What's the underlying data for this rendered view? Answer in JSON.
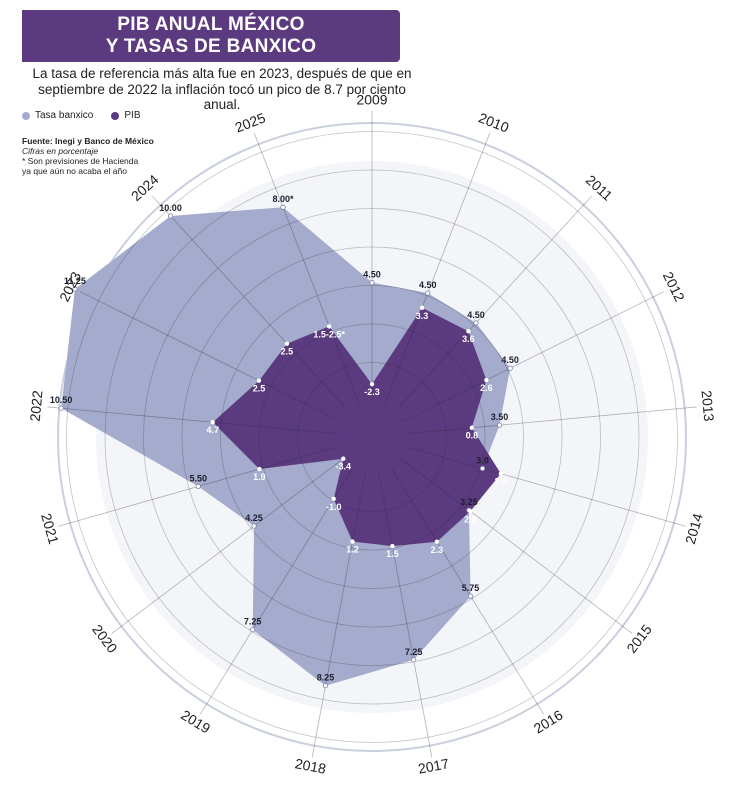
{
  "header": {
    "title_line1": "PIB ANUAL MÉXICO",
    "title_line2": "Y TASAS DE BANXICO",
    "subtitle_line1": "La tasa de referencia más alta fue en 2023, después de que en",
    "subtitle_line2": "septiembre de 2022 la inflación tocó un pico de 8.7 por ciento anual."
  },
  "legend": {
    "tasa": "Tasa banxico",
    "pib": "PIB"
  },
  "source": {
    "line1": "Fuente: Inegi y Banco de México",
    "line2": "Cifras en porcentaje",
    "line3": "* Son previsiones de Hacienda",
    "line4": "ya que aún no acaba el año"
  },
  "colors": {
    "title_bg": "#5b3a80",
    "tasa_fill": "#a4abcc",
    "pib_fill": "#5b3a80",
    "grid": "#c9cfdf"
  },
  "chart_data": {
    "type": "radar",
    "categories": [
      "2009",
      "2010",
      "2011",
      "2012",
      "2013",
      "2014",
      "2015",
      "2016",
      "2017",
      "2018",
      "2019",
      "2020",
      "2021",
      "2022",
      "2023",
      "2024",
      "2025"
    ],
    "series": [
      {
        "name": "Tasa banxico",
        "values": [
          4.5,
          4.5,
          4.5,
          4.5,
          3.5,
          3.0,
          3.25,
          5.75,
          7.25,
          8.25,
          7.25,
          4.25,
          5.5,
          10.5,
          11.25,
          10.0,
          8.0
        ],
        "labels": [
          "4.50",
          "4.50",
          "4.50",
          "4.50",
          "3.50",
          "3.0",
          "3.25",
          "5.75",
          "7.25",
          "8.25",
          "7.25",
          "4.25",
          "5.50",
          "10.50",
          "11.25",
          "10.00",
          "8.00*"
        ]
      },
      {
        "name": "PIB",
        "values": [
          -2.3,
          3.3,
          3.6,
          2.6,
          0.8,
          3.0,
          2.3,
          2.3,
          1.5,
          1.2,
          -1.0,
          -3.4,
          1.9,
          4.7,
          2.5,
          2.5,
          2.0
        ],
        "labels": [
          "-2.3",
          "3.3",
          "3.6",
          "2.6",
          "0.8",
          "3.0",
          "2.3",
          "2.3",
          "1.5",
          "1.2",
          "-1.0",
          "-3.4",
          "1.9",
          "4.7",
          "2.5",
          "2.5",
          "1.5-2.5*"
        ]
      }
    ]
  }
}
